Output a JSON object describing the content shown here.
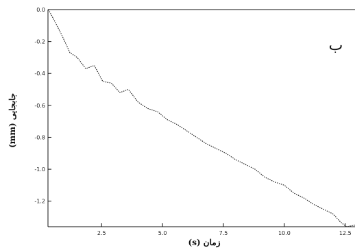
{
  "chart_data": {
    "type": "line",
    "title": "",
    "xlabel": "زمان (s)",
    "ylabel": "جابجایی (mm)",
    "annotation": "ب",
    "xlim": [
      0.3,
      12.9
    ],
    "ylim": [
      -1.36,
      0.0
    ],
    "x_ticks": [
      2.5,
      5.0,
      7.5,
      10.0,
      12.5
    ],
    "x_tick_labels": [
      "2.5",
      "5.0",
      "7.5",
      "10.0",
      "12.5"
    ],
    "y_ticks": [
      0.0,
      -0.2,
      -0.4,
      -0.6,
      -0.8,
      -1.0,
      -1.2
    ],
    "y_tick_labels": [
      "0.0",
      "-0.2",
      "-0.4",
      "-0.6",
      "-0.8",
      "-1.0",
      "-1.2"
    ],
    "grid": false,
    "line_color": "#222222",
    "line_style": "dotted",
    "series": [
      {
        "x": [
          0.32,
          0.6,
          0.9,
          1.2,
          1.5,
          1.85,
          2.2,
          2.55,
          2.9,
          3.25,
          3.6,
          4.0,
          4.4,
          4.8,
          5.2,
          5.6,
          6.0,
          6.4,
          6.8,
          7.2,
          7.6,
          8.0,
          8.4,
          8.8,
          9.2,
          9.6,
          10.0,
          10.4,
          10.8,
          11.2,
          11.6,
          12.0,
          12.3,
          12.55,
          12.9
        ],
        "y": [
          0.0,
          -0.08,
          -0.17,
          -0.27,
          -0.3,
          -0.37,
          -0.35,
          -0.45,
          -0.46,
          -0.52,
          -0.5,
          -0.58,
          -0.62,
          -0.64,
          -0.69,
          -0.72,
          -0.76,
          -0.8,
          -0.84,
          -0.87,
          -0.9,
          -0.94,
          -0.97,
          -1.0,
          -1.05,
          -1.08,
          -1.1,
          -1.15,
          -1.18,
          -1.22,
          -1.25,
          -1.28,
          -1.33,
          -1.36,
          -1.35
        ]
      }
    ]
  }
}
